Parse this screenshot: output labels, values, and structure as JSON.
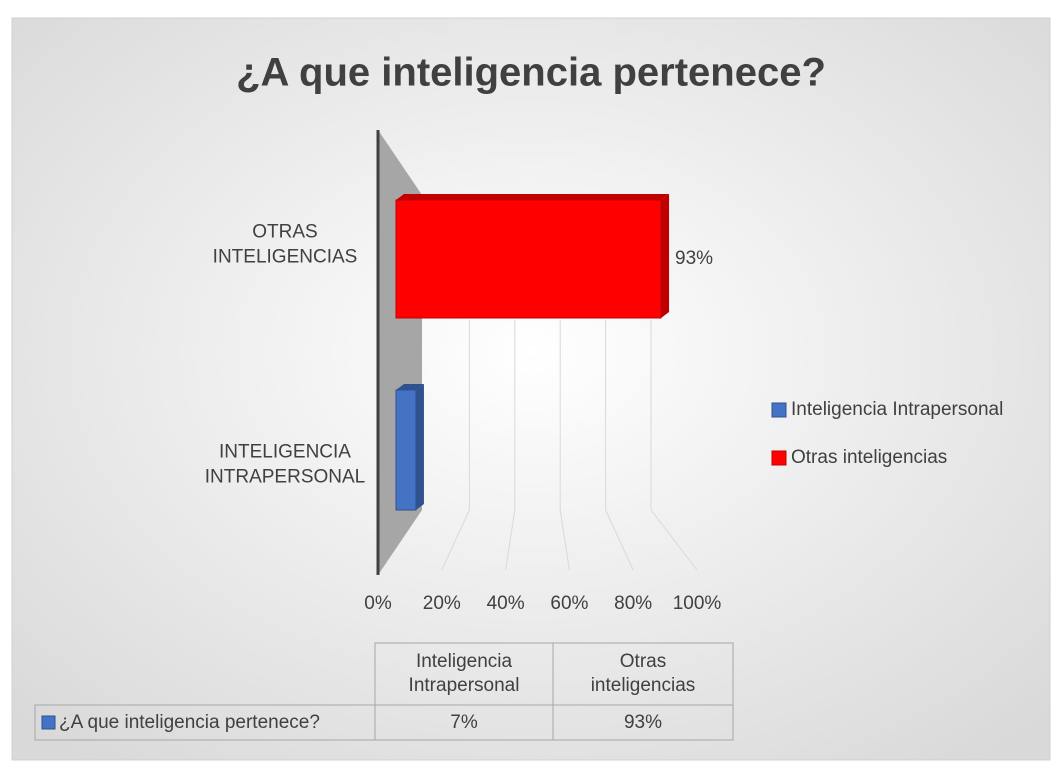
{
  "chart_data": {
    "type": "bar",
    "title": "¿A que inteligencia pertenece?",
    "categories": [
      "INTELIGENCIA INTRAPERSONAL",
      "OTRAS INTELIGENCIAS"
    ],
    "legend": [
      "Inteligencia Intrapersonal",
      "Otras inteligencias"
    ],
    "colors": [
      "#4472c4",
      "#ff0000"
    ],
    "series": [
      {
        "name": "¿A que inteligencia pertenece?",
        "values": [
          7,
          93
        ],
        "value_labels": [
          "7%",
          "93%"
        ]
      }
    ],
    "xlim": [
      0,
      100
    ],
    "xticks": [
      {
        "value": 0,
        "label": "0%"
      },
      {
        "value": 20,
        "label": "20%"
      },
      {
        "value": 40,
        "label": "40%"
      },
      {
        "value": 60,
        "label": "60%"
      },
      {
        "value": 80,
        "label": "80%"
      },
      {
        "value": 100,
        "label": "100%"
      }
    ],
    "grid": true
  }
}
